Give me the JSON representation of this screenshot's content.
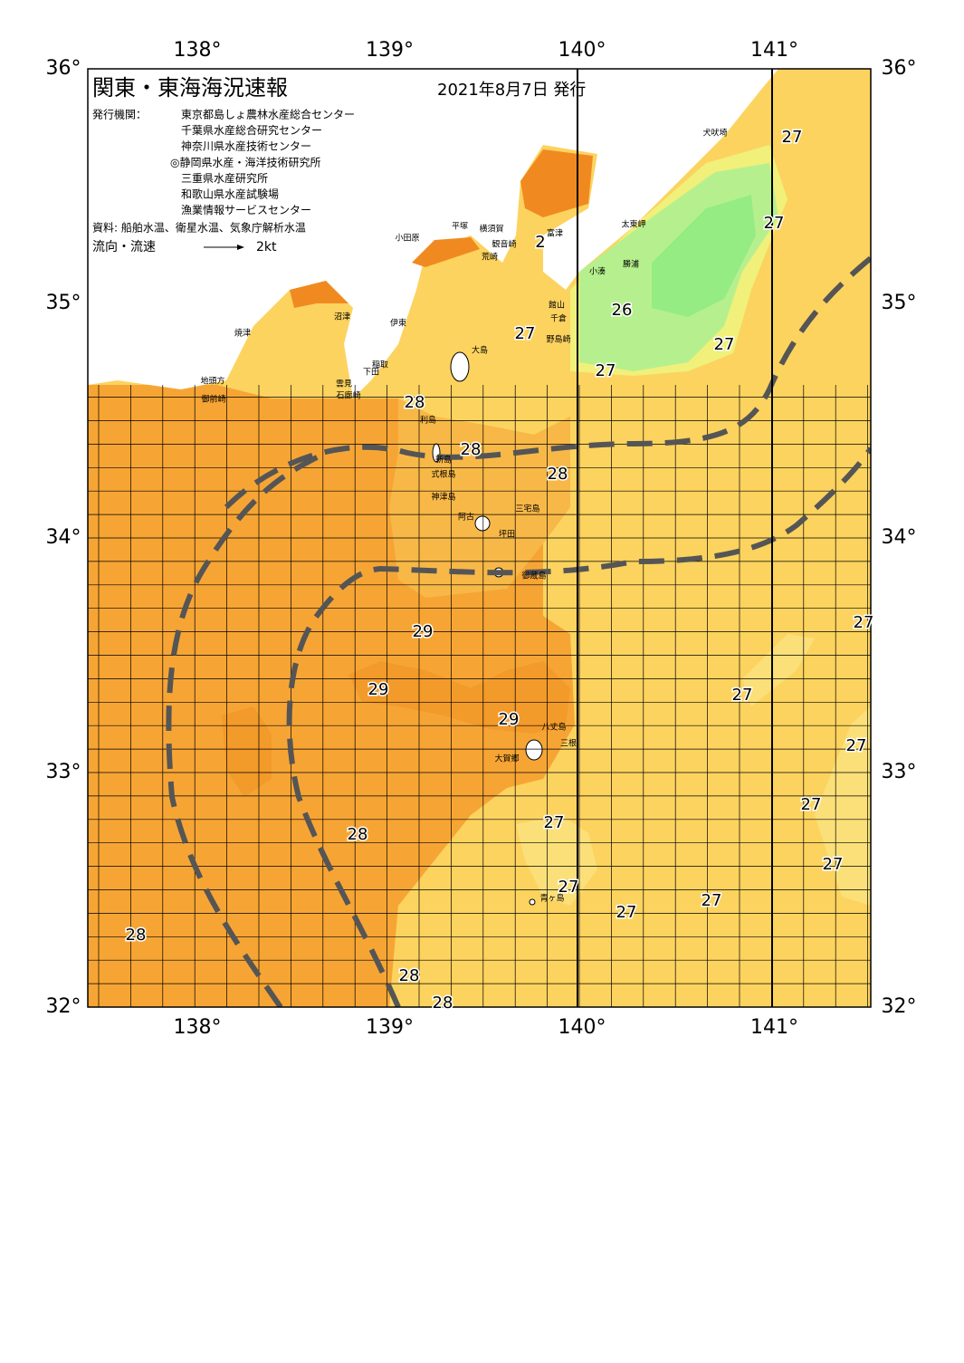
{
  "header": {
    "title": "関東・東海海況速報",
    "date": "2021年8月7日 発行"
  },
  "issuers": {
    "label": "発行機関：",
    "agencies": [
      "東京都島しょ農林水産総合センター",
      "千葉県水産総合研究センター",
      "神奈川県水産技術センター",
      "◎静岡県水産・海洋技術研究所",
      "三重県水産研究所",
      "和歌山県水産試験場",
      "漁業情報サービスセンター"
    ]
  },
  "source": "資料: 船舶水温、衛星水温、気象庁解析水温",
  "flow_legend": {
    "label": "流向・流速",
    "speed": "2kt"
  },
  "axes": {
    "lon_ticks": [
      {
        "value": 138,
        "label": "138°"
      },
      {
        "value": 139,
        "label": "139°"
      },
      {
        "value": 140,
        "label": "140°"
      },
      {
        "value": 141,
        "label": "141°"
      }
    ],
    "lat_ticks": [
      {
        "value": 36,
        "label": "36°"
      },
      {
        "value": 35,
        "label": "35°"
      },
      {
        "value": 34,
        "label": "34°"
      },
      {
        "value": 33,
        "label": "33°"
      },
      {
        "value": 32,
        "label": "32°"
      }
    ]
  },
  "temperature_labels": [
    "27",
    "27",
    "26",
    "27",
    "27",
    "27",
    "28",
    "28",
    "28",
    "29",
    "29",
    "29",
    "27",
    "27",
    "27",
    "27",
    "27",
    "27",
    "27",
    "27",
    "27",
    "28",
    "28",
    "28",
    "28",
    "2"
  ],
  "place_names": [
    "犬吠埼",
    "太東岬",
    "勝浦",
    "小湊",
    "館山",
    "千倉",
    "野島崎",
    "富津",
    "横須賀",
    "観音崎",
    "荒崎",
    "平塚",
    "小田原",
    "伊東",
    "沼津",
    "焼津",
    "地頭方",
    "御前崎",
    "稲取",
    "下田",
    "雲見",
    "石廊崎",
    "大島",
    "利島",
    "新島",
    "式根島",
    "神津島",
    "三宅島",
    "阿古",
    "坪田",
    "御蔵島",
    "八丈島",
    "三根",
    "大賀郷",
    "青ヶ島"
  ]
}
